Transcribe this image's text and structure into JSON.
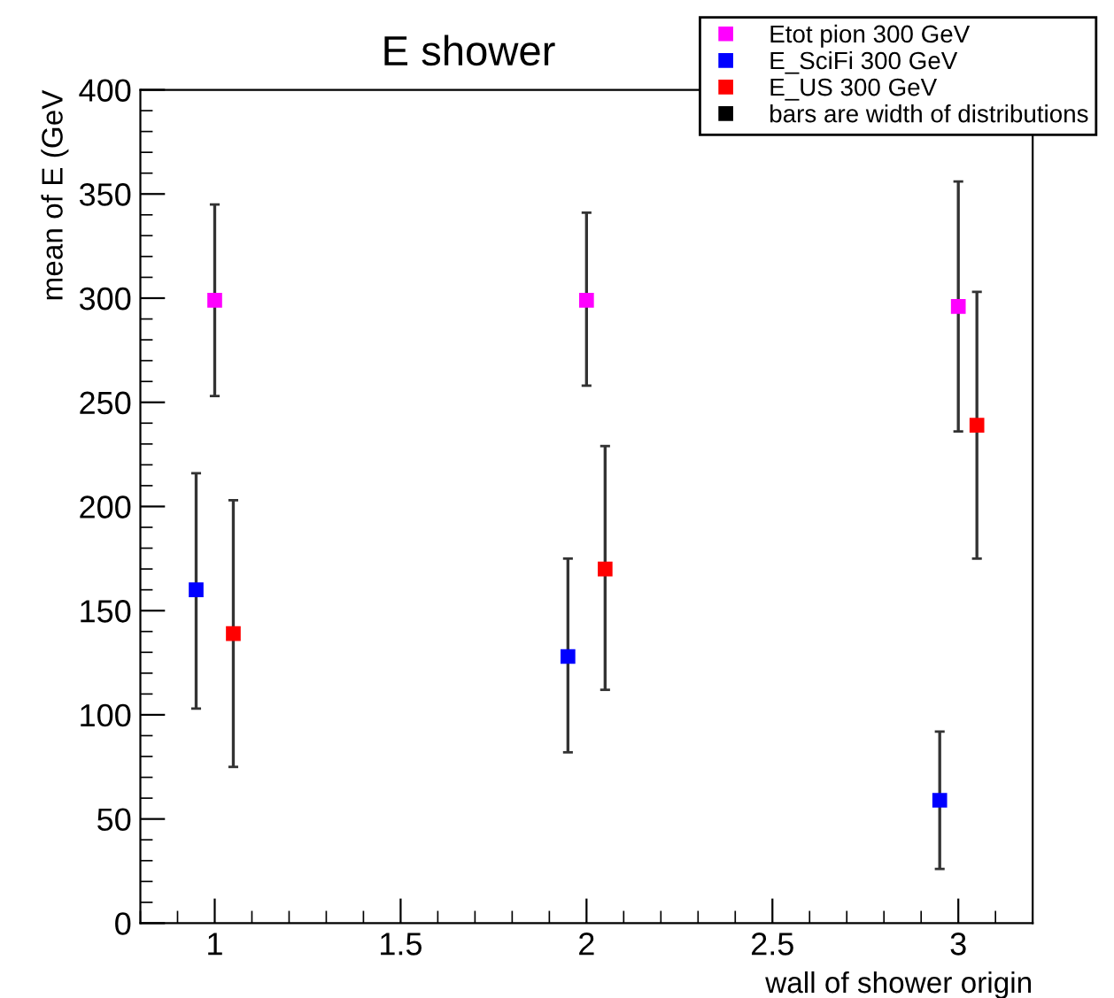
{
  "chart_data": {
    "type": "scatter",
    "title": "E shower",
    "xlabel": "wall of shower origin",
    "ylabel": "mean of E (GeV",
    "xlim": [
      0.8,
      3.2
    ],
    "xticks": [
      1,
      1.5,
      2,
      2.5,
      3
    ],
    "ylim": [
      0,
      400
    ],
    "yticks": [
      0,
      50,
      100,
      150,
      200,
      250,
      300,
      350,
      400
    ],
    "marker": "square",
    "grid": false,
    "legend": "top right",
    "annotations": [
      "bars are width of distributions"
    ],
    "series": [
      {
        "name": "Etot pion 300 GeV",
        "color": "#ff00ff",
        "x": [
          1,
          2,
          3
        ],
        "values": [
          299,
          299,
          296
        ],
        "errors": [
          [
            253,
            345
          ],
          [
            258,
            341
          ],
          [
            236,
            356
          ]
        ]
      },
      {
        "name": "E_SciFi 300 GeV",
        "color": "#0000ff",
        "x": [
          0.95,
          1.95,
          2.95
        ],
        "values": [
          160,
          128,
          59
        ],
        "errors": [
          [
            103,
            216
          ],
          [
            82,
            175
          ],
          [
            26,
            92
          ]
        ]
      },
      {
        "name": "E_US 300 GeV",
        "color": "#ff0000",
        "x": [
          1.05,
          2.05,
          3.05
        ],
        "values": [
          139,
          170,
          239
        ],
        "errors": [
          [
            75,
            203
          ],
          [
            112,
            229
          ],
          [
            175,
            303
          ]
        ]
      }
    ]
  }
}
